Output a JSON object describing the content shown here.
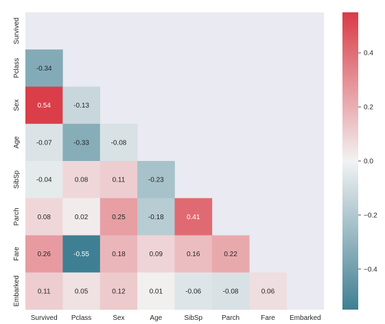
{
  "chart_data": {
    "type": "heatmap",
    "variables": [
      "Survived",
      "Pclass",
      "Sex",
      "Age",
      "SibSp",
      "Parch",
      "Fare",
      "Embarked"
    ],
    "mask": "upper-triangle-including-diagonal",
    "values": [
      [
        null,
        null,
        null,
        null,
        null,
        null,
        null,
        null
      ],
      [
        -0.34,
        null,
        null,
        null,
        null,
        null,
        null,
        null
      ],
      [
        0.54,
        -0.13,
        null,
        null,
        null,
        null,
        null,
        null
      ],
      [
        -0.07,
        -0.33,
        -0.08,
        null,
        null,
        null,
        null,
        null
      ],
      [
        -0.04,
        0.08,
        0.11,
        -0.23,
        null,
        null,
        null,
        null
      ],
      [
        0.08,
        0.02,
        0.25,
        -0.18,
        0.41,
        null,
        null,
        null
      ],
      [
        0.26,
        -0.55,
        0.18,
        0.09,
        0.16,
        0.22,
        null,
        null
      ],
      [
        0.11,
        0.05,
        0.12,
        0.01,
        -0.06,
        -0.08,
        0.06,
        null
      ]
    ],
    "value_labels": [
      [
        null,
        null,
        null,
        null,
        null,
        null,
        null,
        null
      ],
      [
        "-0.34",
        null,
        null,
        null,
        null,
        null,
        null,
        null
      ],
      [
        "0.54",
        "-0.13",
        null,
        null,
        null,
        null,
        null,
        null
      ],
      [
        "-0.07",
        "-0.33",
        "-0.08",
        null,
        null,
        null,
        null,
        null
      ],
      [
        "-0.04",
        "0.08",
        "0.11",
        "-0.23",
        null,
        null,
        null,
        null
      ],
      [
        "0.08",
        "0.02",
        "0.25",
        "-0.18",
        "0.41",
        null,
        null,
        null
      ],
      [
        "0.26",
        "-0.55",
        "0.18",
        "0.09",
        "0.16",
        "0.22",
        null,
        null
      ],
      [
        "0.11",
        "0.05",
        "0.12",
        "0.01",
        "-0.06",
        "-0.08",
        "0.06",
        null
      ]
    ],
    "colorbar": {
      "range": [
        -0.55,
        0.55
      ],
      "ticks": [
        0.4,
        0.2,
        0.0,
        -0.2,
        -0.4
      ],
      "tick_labels": [
        "0.4",
        "0.2",
        "0.0",
        "−0.2",
        "−0.4"
      ],
      "colormap": "diverging (seaborn 220-10)",
      "colors": {
        "negative": "#3f7f93",
        "center": "#f2f2f2",
        "positive": "#da3b46"
      }
    },
    "background_color": "#eaeaf2",
    "grid": false,
    "title": "",
    "xlabel": "",
    "ylabel": ""
  }
}
